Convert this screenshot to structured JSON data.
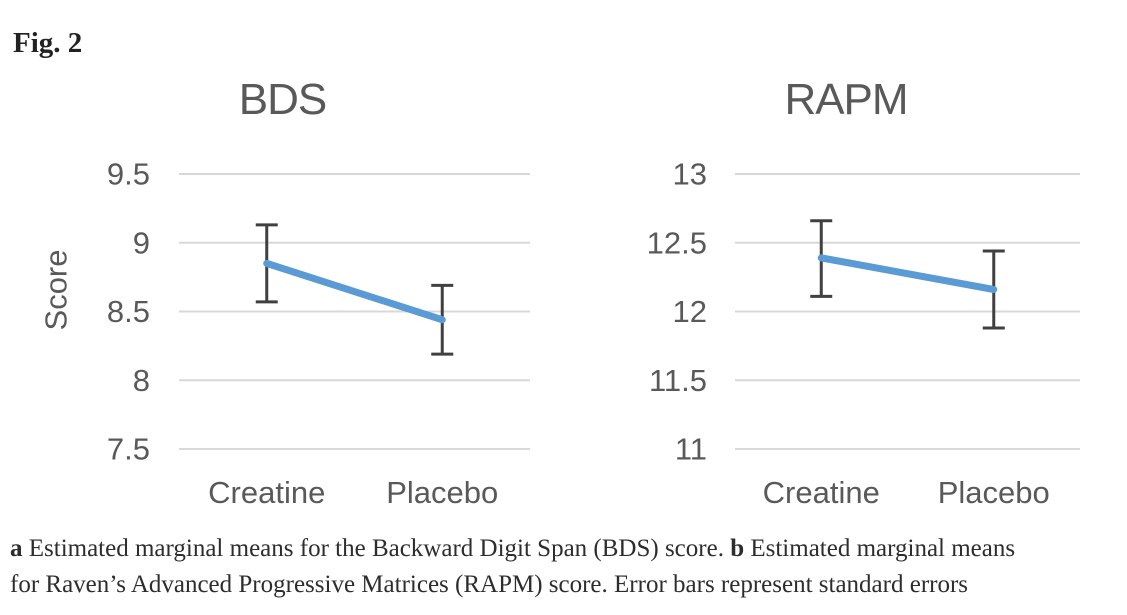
{
  "figure": {
    "label": "Fig. 2"
  },
  "caption": {
    "a_label": "a",
    "a_text": " Estimated marginal means for the Backward Digit Span (BDS) score. ",
    "b_label": "b",
    "b_text_line1": " Estimated marginal means",
    "b_text_line2": "for Raven’s Advanced Progressive Matrices (RAPM) score. Error bars represent standard errors"
  },
  "colors": {
    "line": "#5B9BD5",
    "error_bar": "#404040",
    "gridline": "#D8D8D8",
    "chart_text": "#595959",
    "caption_text": "#2D2D2D"
  },
  "chart_data": [
    {
      "type": "line",
      "title": "BDS",
      "ylabel": "Score",
      "xlabel": "",
      "categories": [
        "Creatine",
        "Placebo"
      ],
      "yticks": [
        9.5,
        9,
        8.5,
        8,
        7.5
      ],
      "ylim": [
        7.5,
        9.5
      ],
      "grid": true,
      "legend": false,
      "series": [
        {
          "name": "Estimated marginal mean",
          "values": [
            8.85,
            8.44
          ],
          "error_high": [
            9.13,
            8.69
          ],
          "error_low": [
            8.57,
            8.19
          ]
        }
      ]
    },
    {
      "type": "line",
      "title": "RAPM",
      "ylabel": "",
      "xlabel": "",
      "categories": [
        "Creatine",
        "Placebo"
      ],
      "yticks": [
        13,
        12.5,
        12,
        11.5,
        11
      ],
      "ylim": [
        11,
        13
      ],
      "grid": true,
      "legend": false,
      "series": [
        {
          "name": "Estimated marginal mean",
          "values": [
            12.39,
            12.16
          ],
          "error_high": [
            12.66,
            12.44
          ],
          "error_low": [
            12.11,
            11.88
          ]
        }
      ]
    }
  ]
}
